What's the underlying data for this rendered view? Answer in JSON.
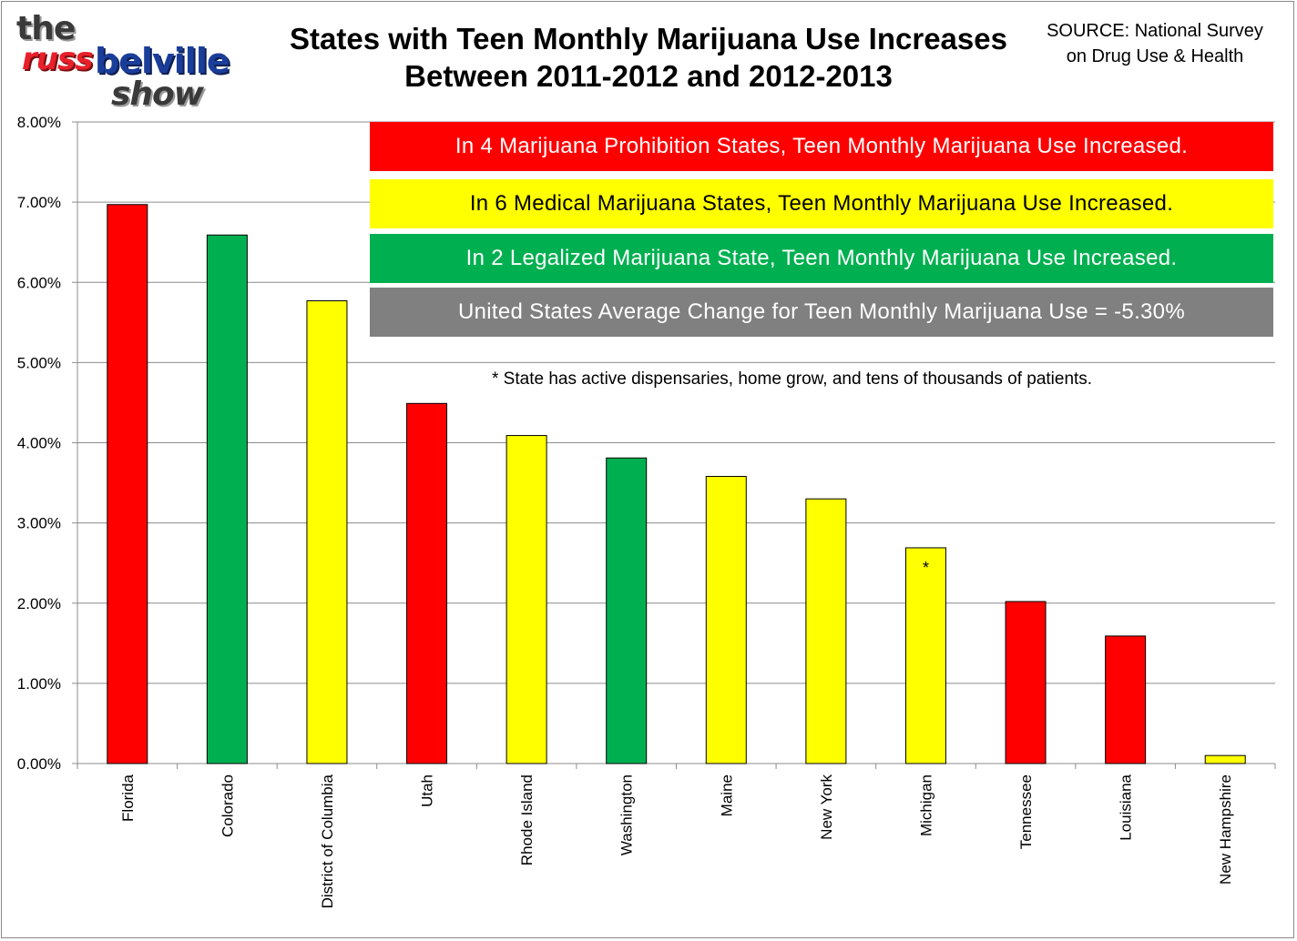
{
  "logo": {
    "line1": "the",
    "line2a": "russ",
    "line2b": "belville",
    "line3": "show"
  },
  "source": {
    "line1": "SOURCE: National Survey",
    "line2": "on Drug Use & Health"
  },
  "banners": {
    "red": "In 4 Marijuana Prohibition States, Teen Monthly Marijuana Use Increased.",
    "yellow": "In 6 Medical Marijuana States, Teen Monthly Marijuana Use Increased.",
    "green": "In 2 Legalized Marijuana State, Teen Monthly Marijuana Use Increased.",
    "gray": "United States Average Change for Teen Monthly Marijuana Use = -5.30%"
  },
  "footnote": "* State has active dispensaries, home grow, and tens of thousands of patients.",
  "colors": {
    "red": "#ff0000",
    "yellow": "#ffff00",
    "green": "#00b050",
    "gray": "#808080"
  },
  "chart_data": {
    "type": "bar",
    "title": "States with Teen Monthly Marijuana Use Increases Between 2011-2012 and 2012-2013",
    "title_line1": "States with Teen Monthly Marijuana Use Increases",
    "title_line2": "Between 2011-2012 and 2012-2013",
    "xlabel": "",
    "ylabel": "",
    "ylim": [
      0,
      8
    ],
    "yticks": [
      "0.00%",
      "1.00%",
      "2.00%",
      "3.00%",
      "4.00%",
      "5.00%",
      "6.00%",
      "7.00%",
      "8.00%"
    ],
    "grid": true,
    "legend": "none",
    "categories": [
      "Florida",
      "Colorado",
      "District of Columbia",
      "Utah",
      "Rhode Island",
      "Washington",
      "Maine",
      "New York",
      "Michigan",
      "Tennessee",
      "Louisiana",
      "New Hampshire"
    ],
    "values": [
      6.97,
      6.59,
      5.77,
      4.49,
      4.09,
      3.81,
      3.58,
      3.3,
      2.69,
      2.02,
      1.59,
      0.1
    ],
    "bar_colors": [
      "#ff0000",
      "#00b050",
      "#ffff00",
      "#ff0000",
      "#ffff00",
      "#00b050",
      "#ffff00",
      "#ffff00",
      "#ffff00",
      "#ff0000",
      "#ff0000",
      "#ffff00"
    ],
    "annotations": [
      {
        "category": "Michigan",
        "text": "*"
      }
    ]
  }
}
